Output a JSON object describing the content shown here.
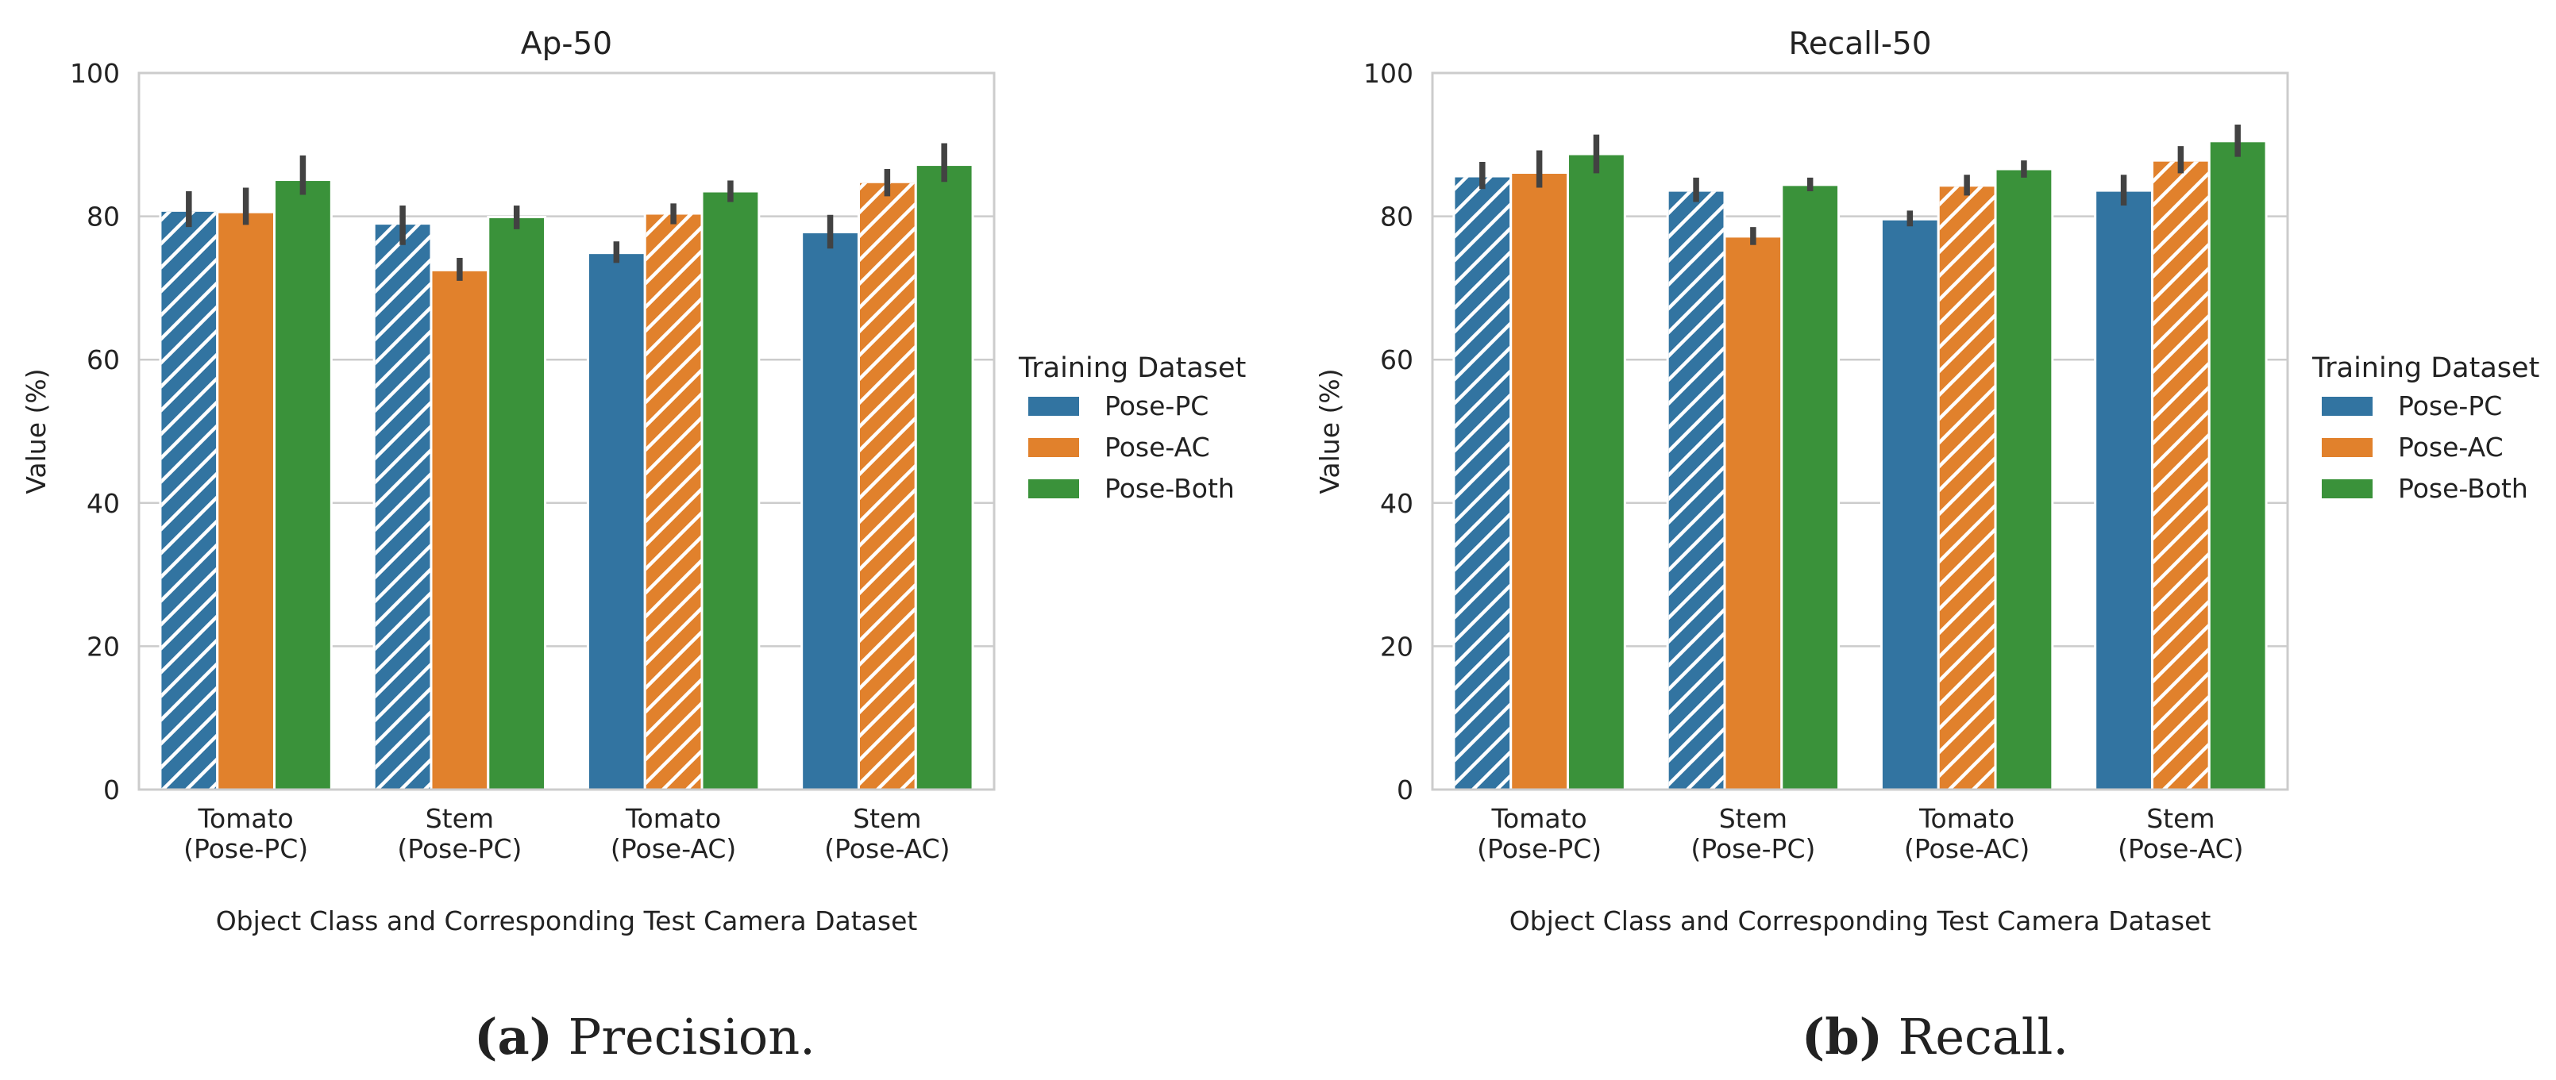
{
  "colors": {
    "Pose-PC": "#3274a1",
    "Pose-AC": "#e1812c",
    "Pose-Both": "#3a923a",
    "grid": "#cccccc",
    "axes": "#cccccc",
    "errorbar": "#424242"
  },
  "chart_data": [
    {
      "type": "bar",
      "title": "Ap-50",
      "caption": {
        "label": "(a)",
        "text": "Precision."
      },
      "xlabel": "Object Class and Corresponding Test Camera Dataset",
      "ylabel": "Value (%)",
      "ylim": [
        0,
        100
      ],
      "yticks": [
        0,
        20,
        40,
        60,
        80,
        100
      ],
      "grid": true,
      "legend": {
        "title": "Training Dataset",
        "placement": "right"
      },
      "categories": [
        [
          "Tomato",
          "(Pose-PC)"
        ],
        [
          "Stem",
          "(Pose-PC)"
        ],
        [
          "Tomato",
          "(Pose-AC)"
        ],
        [
          "Stem",
          "(Pose-AC)"
        ]
      ],
      "series": [
        {
          "name": "Pose-PC",
          "values": [
            80.8,
            79.0,
            74.9,
            77.8
          ],
          "err_low": [
            78.5,
            76.0,
            73.5,
            75.5
          ],
          "err_high": [
            83.5,
            81.5,
            76.5,
            80.2
          ],
          "hatched": [
            true,
            true,
            false,
            false
          ]
        },
        {
          "name": "Pose-AC",
          "values": [
            80.6,
            72.5,
            80.4,
            84.8
          ],
          "err_low": [
            78.8,
            71.0,
            78.9,
            82.8
          ],
          "err_high": [
            84.0,
            74.2,
            81.8,
            86.6
          ],
          "hatched": [
            false,
            false,
            true,
            true
          ]
        },
        {
          "name": "Pose-Both",
          "values": [
            85.1,
            79.9,
            83.5,
            87.2
          ],
          "err_low": [
            83.0,
            78.2,
            82.0,
            84.8
          ],
          "err_high": [
            88.5,
            81.5,
            85.0,
            90.2
          ],
          "hatched": [
            false,
            false,
            false,
            false
          ]
        }
      ]
    },
    {
      "type": "bar",
      "title": "Recall-50",
      "caption": {
        "label": "(b)",
        "text": "Recall."
      },
      "xlabel": "Object Class and Corresponding Test Camera Dataset",
      "ylabel": "Value (%)",
      "ylim": [
        0,
        100
      ],
      "yticks": [
        0,
        20,
        40,
        60,
        80,
        100
      ],
      "grid": true,
      "legend": {
        "title": "Training Dataset",
        "placement": "right"
      },
      "categories": [
        [
          "Tomato",
          "(Pose-PC)"
        ],
        [
          "Stem",
          "(Pose-PC)"
        ],
        [
          "Tomato",
          "(Pose-AC)"
        ],
        [
          "Stem",
          "(Pose-AC)"
        ]
      ],
      "series": [
        {
          "name": "Pose-PC",
          "values": [
            85.6,
            83.6,
            79.6,
            83.6
          ],
          "err_low": [
            83.8,
            82.0,
            78.6,
            81.5
          ],
          "err_high": [
            87.6,
            85.4,
            80.8,
            85.8
          ],
          "hatched": [
            true,
            true,
            false,
            false
          ]
        },
        {
          "name": "Pose-AC",
          "values": [
            86.1,
            77.2,
            84.3,
            87.8
          ],
          "err_low": [
            84.0,
            76.0,
            82.9,
            86.0
          ],
          "err_high": [
            89.2,
            78.5,
            85.8,
            89.8
          ],
          "hatched": [
            false,
            false,
            true,
            true
          ]
        },
        {
          "name": "Pose-Both",
          "values": [
            88.7,
            84.4,
            86.6,
            90.5
          ],
          "err_low": [
            86.0,
            83.5,
            85.4,
            88.3
          ],
          "err_high": [
            91.4,
            85.4,
            87.8,
            92.8
          ],
          "hatched": [
            false,
            false,
            false,
            false
          ]
        }
      ]
    }
  ]
}
